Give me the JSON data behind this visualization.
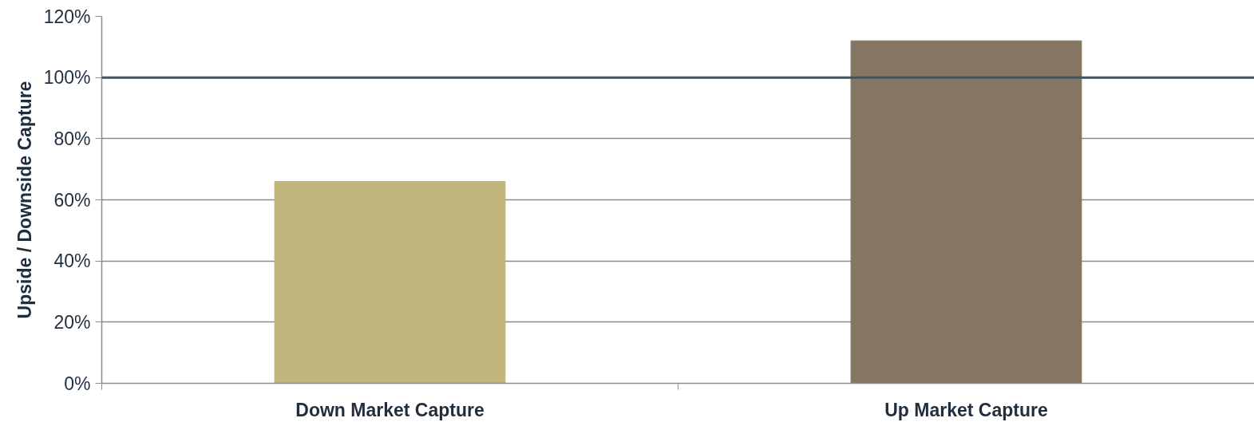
{
  "chart_data": {
    "type": "bar",
    "ylabel": "Upside / Downside Capture",
    "categories": [
      "Down Market Capture",
      "Up Market Capture"
    ],
    "values": [
      66,
      112
    ],
    "colors": [
      "#c0b57a",
      "#857563"
    ],
    "ylim": [
      0,
      120
    ],
    "yticks": [
      {
        "value": 0,
        "label": "0%"
      },
      {
        "value": 20,
        "label": "20%"
      },
      {
        "value": 40,
        "label": "40%"
      },
      {
        "value": 60,
        "label": "60%"
      },
      {
        "value": 80,
        "label": "80%"
      },
      {
        "value": 100,
        "label": "100%"
      },
      {
        "value": 120,
        "label": "120%"
      }
    ],
    "grid": "y",
    "ref_lines": [
      {
        "axis": "y",
        "value": 100,
        "color": "#44535e"
      }
    ]
  }
}
